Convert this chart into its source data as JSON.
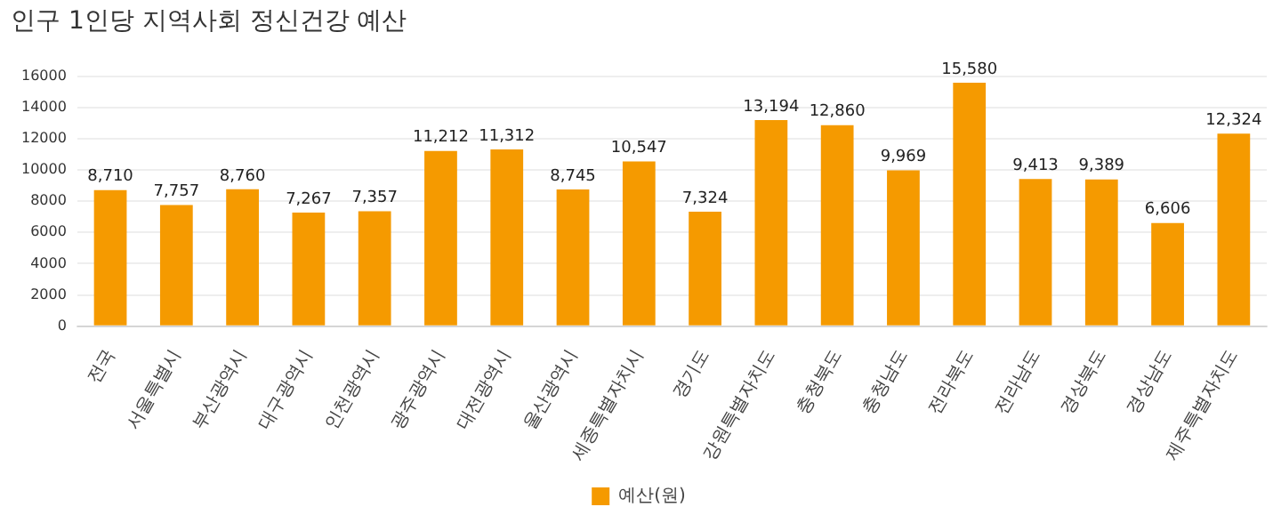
{
  "chart_data": {
    "type": "bar",
    "title": "인구 1인당 지역사회 정신건강 예산",
    "categories": [
      "전국",
      "서울특별시",
      "부산광역시",
      "대구광역시",
      "인천광역시",
      "광주광역시",
      "대전광역시",
      "울산광역시",
      "세종특별자치시",
      "경기도",
      "강원특별자치도",
      "충청북도",
      "충청남도",
      "전라북도",
      "전라남도",
      "경상북도",
      "경상남도",
      "제주특별자치도"
    ],
    "series": [
      {
        "name": "예산(원)",
        "color": "#f59a00",
        "values": [
          8710,
          7757,
          8760,
          7267,
          7357,
          11212,
          11312,
          8745,
          10547,
          7324,
          13194,
          12860,
          9969,
          15580,
          9413,
          9389,
          6606,
          12324
        ],
        "value_labels": [
          "8,710",
          "7,757",
          "8,760",
          "7,267",
          "7,357",
          "11,212",
          "11,312",
          "8,745",
          "10,547",
          "7,324",
          "13,194",
          "12,860",
          "9,969",
          "15,580",
          "9,413",
          "9,389",
          "6,606",
          "12,324"
        ]
      }
    ],
    "ylim": [
      0,
      16000
    ],
    "yticks": [
      0,
      2000,
      4000,
      6000,
      8000,
      10000,
      12000,
      14000,
      16000
    ],
    "grid": "y",
    "legend": "bottom"
  }
}
